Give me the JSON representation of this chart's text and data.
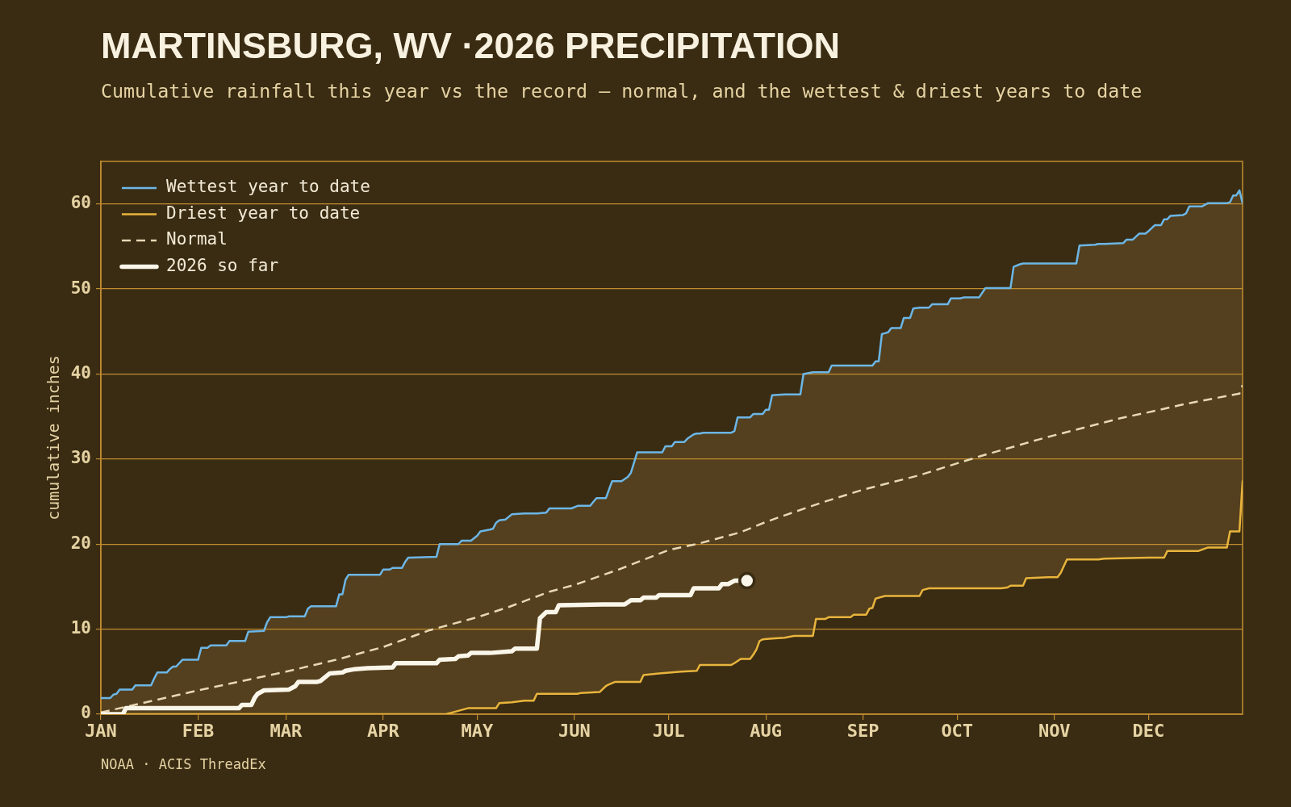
{
  "chart_data": {
    "type": "line",
    "title": "MARTINSBURG, WV ·2026 PRECIPITATION",
    "subtitle": "Cumulative rainfall this year vs the record — normal, and the wettest & driest years to date",
    "ylabel": "cumulative inches",
    "annotations": [
      "NOAA · ACIS ThreadEx"
    ],
    "xlim": [
      "--01-01",
      "--12-31"
    ],
    "xticks": [
      {
        "value": "--01-01",
        "label": "JAN"
      },
      {
        "value": "--02-01",
        "label": "FEB"
      },
      {
        "value": "--03-01",
        "label": "MAR"
      },
      {
        "value": "--04-01",
        "label": "APR"
      },
      {
        "value": "--05-01",
        "label": "MAY"
      },
      {
        "value": "--06-01",
        "label": "JUN"
      },
      {
        "value": "--07-01",
        "label": "JUL"
      },
      {
        "value": "--08-01",
        "label": "AUG"
      },
      {
        "value": "--09-01",
        "label": "SEP"
      },
      {
        "value": "--10-01",
        "label": "OCT"
      },
      {
        "value": "--11-01",
        "label": "NOV"
      },
      {
        "value": "--12-01",
        "label": "DEC"
      }
    ],
    "ylim": [
      0,
      65
    ],
    "yticks": [
      0,
      10,
      20,
      30,
      40,
      50,
      60
    ],
    "grid": "y",
    "legend": "top left",
    "series": [
      {
        "name": "Wettest year to date",
        "color": "#6cb6e6",
        "x": [
          "--01-01",
          "--01-04",
          "--01-05",
          "--01-06",
          "--01-07",
          "--01-11",
          "--01-12",
          "--01-17",
          "--01-18",
          "--01-19",
          "--01-22",
          "--01-23",
          "--01-24",
          "--01-25",
          "--01-27",
          "--02-01",
          "--02-02",
          "--02-04",
          "--02-05",
          "--02-10",
          "--02-11",
          "--02-16",
          "--02-17",
          "--02-22",
          "--02-23",
          "--02-24",
          "--03-01",
          "--03-02",
          "--03-07",
          "--03-08",
          "--03-09",
          "--03-17",
          "--03-18",
          "--03-19",
          "--03-20",
          "--03-21",
          "--03-31",
          "--04-01",
          "--04-03",
          "--04-04",
          "--04-07",
          "--04-08",
          "--04-09",
          "--04-18",
          "--04-19",
          "--04-21",
          "--04-24",
          "--04-25",
          "--04-26",
          "--04-28",
          "--04-29",
          "--05-01",
          "--05-02",
          "--05-05",
          "--05-06",
          "--05-07",
          "--05-08",
          "--05-10",
          "--05-12",
          "--05-16",
          "--05-19",
          "--05-20",
          "--05-23",
          "--05-24",
          "--05-31",
          "--06-02",
          "--06-03",
          "--06-06",
          "--06-08",
          "--06-09",
          "--06-11",
          "--06-12",
          "--06-13",
          "--06-14",
          "--06-16",
          "--06-18",
          "--06-19",
          "--06-20",
          "--06-21",
          "--06-22",
          "--06-23",
          "--06-28",
          "--06-29",
          "--06-30",
          "--07-02",
          "--07-03",
          "--07-05",
          "--07-06",
          "--07-07",
          "--07-09",
          "--07-10",
          "--07-11",
          "--07-12",
          "--07-21",
          "--07-22",
          "--07-23",
          "--07-24",
          "--07-27",
          "--07-28",
          "--07-29",
          "--07-30",
          "--07-31",
          "--08-01",
          "--08-02",
          "--08-03",
          "--08-07",
          "--08-09",
          "--08-10",
          "--08-12",
          "--08-13",
          "--08-16",
          "--08-17",
          "--08-20",
          "--08-21",
          "--08-22",
          "--08-28",
          "--08-29",
          "--09-02",
          "--09-03",
          "--09-04",
          "--09-05",
          "--09-06",
          "--09-07",
          "--09-08",
          "--09-09",
          "--09-10",
          "--09-13",
          "--09-14",
          "--09-16",
          "--09-17",
          "--09-19",
          "--09-20",
          "--09-22",
          "--09-23",
          "--09-28",
          "--09-29",
          "--10-02",
          "--10-03",
          "--10-08",
          "--10-10",
          "--10-15",
          "--10-17",
          "--10-18",
          "--10-19",
          "--10-21",
          "--10-22",
          "--10-23",
          "--10-30",
          "--11-02",
          "--11-03",
          "--11-05",
          "--11-08",
          "--11-09",
          "--11-14",
          "--11-15",
          "--11-17",
          "--11-23",
          "--11-24",
          "--11-26",
          "--11-28",
          "--11-30",
          "--12-01",
          "--12-03",
          "--12-05",
          "--12-06",
          "--12-07",
          "--12-08",
          "--12-12",
          "--12-13",
          "--12-14",
          "--12-17",
          "--12-18",
          "--12-20",
          "--12-25",
          "--12-26",
          "--12-27",
          "--12-28",
          "--12-29",
          "--12-30",
          "--12-31"
        ],
        "values": [
          1.9,
          1.9,
          2.3,
          2.4,
          2.9,
          2.9,
          3.4,
          3.4,
          4.2,
          4.9,
          4.9,
          5.3,
          5.6,
          5.6,
          6.4,
          6.4,
          7.8,
          7.8,
          8.1,
          8.1,
          8.6,
          8.6,
          9.7,
          9.8,
          10.8,
          11.4,
          11.4,
          11.5,
          11.5,
          12.4,
          12.7,
          12.7,
          14.1,
          14.1,
          15.8,
          16.4,
          16.4,
          17.0,
          17.0,
          17.2,
          17.2,
          17.9,
          18.4,
          18.5,
          20.0,
          20.0,
          20.0,
          20.0,
          20.4,
          20.4,
          20.4,
          21.0,
          21.5,
          21.7,
          21.8,
          22.5,
          22.8,
          22.9,
          23.5,
          23.6,
          23.6,
          23.6,
          23.7,
          24.2,
          24.2,
          24.5,
          24.5,
          24.5,
          25.4,
          25.4,
          25.4,
          26.4,
          27.4,
          27.4,
          27.4,
          27.9,
          28.4,
          29.6,
          30.8,
          30.8,
          30.8,
          30.8,
          30.8,
          31.5,
          31.5,
          32.0,
          32.0,
          32.0,
          32.4,
          32.9,
          33.0,
          33.0,
          33.1,
          33.1,
          33.3,
          34.9,
          34.9,
          34.9,
          35.3,
          35.3,
          35.3,
          35.3,
          35.8,
          35.8,
          37.5,
          37.6,
          37.6,
          37.6,
          37.6,
          40.0,
          40.2,
          40.2,
          40.2,
          40.2,
          41.0,
          41.0,
          41.0,
          41.0,
          41.0,
          41.0,
          41.5,
          41.5,
          44.7,
          44.8,
          44.9,
          45.4,
          45.4,
          46.6,
          46.6,
          47.7,
          47.8,
          47.8,
          47.8,
          48.2,
          48.2,
          48.9,
          48.9,
          49.0,
          49.0,
          50.1,
          50.1,
          50.1,
          50.1,
          52.6,
          52.9,
          53.0,
          53.0,
          53.0,
          53.0,
          53.0,
          53.0,
          53.0,
          55.1,
          55.2,
          55.3,
          55.3,
          55.4,
          55.8,
          55.8,
          56.5,
          56.5,
          56.8,
          57.5,
          57.5,
          58.2,
          58.2,
          58.6,
          58.7,
          58.9,
          59.7,
          59.7,
          59.7,
          60.1,
          60.1,
          60.1,
          60.2,
          61.0,
          61.0,
          61.6,
          60.1
        ],
        "upper": [
          1.9,
          1.9,
          2.3,
          2.4,
          2.9,
          2.9,
          3.4,
          3.4,
          4.2,
          4.9,
          4.9,
          5.3,
          5.6,
          5.6,
          6.4,
          6.4,
          7.8,
          7.8,
          8.1,
          8.1,
          8.6,
          8.6,
          9.7,
          9.8,
          10.8,
          11.4,
          11.4,
          11.5,
          11.5,
          12.4,
          12.7,
          12.7,
          14.1,
          14.1,
          15.8,
          16.4,
          16.4,
          17.0,
          17.0,
          17.2,
          17.2,
          17.9,
          18.4,
          18.5,
          20.0,
          20.0,
          20.0,
          20.0,
          20.4,
          20.4,
          20.4,
          21.0,
          21.5,
          21.7,
          21.8,
          22.5,
          22.8,
          22.9,
          23.5,
          23.6,
          23.6,
          23.6,
          23.7,
          24.2,
          24.2,
          24.5,
          24.5,
          24.5,
          25.4,
          25.4,
          25.4,
          26.4,
          27.4,
          27.4,
          27.4,
          27.9,
          28.4,
          29.6,
          30.8,
          30.8,
          30.8,
          30.8,
          30.8,
          31.5,
          31.5,
          32.0,
          32.0,
          32.0,
          32.4,
          32.9,
          33.0,
          33.0,
          33.1,
          33.1,
          33.3,
          34.9,
          34.9,
          34.9,
          35.3,
          35.3,
          35.3,
          35.3,
          35.8,
          35.8,
          37.5,
          37.6,
          37.6,
          37.6,
          37.6,
          40.0,
          40.2,
          40.2,
          40.2,
          40.2,
          41.0,
          41.0,
          41.0,
          41.0,
          41.0,
          41.0,
          41.5,
          41.5,
          44.7,
          44.8,
          44.9,
          45.4,
          45.4,
          46.6,
          46.6,
          47.7,
          47.8,
          47.8,
          47.8,
          48.2,
          48.2,
          48.9,
          48.9,
          49.0,
          49.0,
          50.1,
          50.1,
          50.1,
          50.1,
          52.6,
          52.9,
          53.0,
          53.0,
          53.0,
          53.0,
          53.0,
          53.0,
          53.0,
          55.1,
          55.2,
          55.3,
          55.3,
          55.4,
          55.8,
          55.8,
          56.5,
          56.5,
          56.8,
          57.5,
          57.5,
          58.2,
          58.2,
          58.6,
          58.7,
          58.9,
          59.7,
          59.7,
          59.7,
          60.1,
          60.1,
          60.1,
          60.2,
          61.0,
          61.0,
          61.6,
          60.1
        ],
        "lower": [
          0,
          0,
          0,
          0,
          0,
          0,
          0,
          0,
          0,
          0,
          0,
          0,
          0,
          0,
          0,
          0,
          0,
          0,
          0,
          0,
          0,
          0,
          0,
          0,
          0,
          0,
          0,
          0,
          0,
          0,
          0,
          0,
          0,
          0,
          0,
          0,
          0,
          0,
          0,
          0,
          0,
          0,
          0,
          0,
          0,
          0,
          0.3,
          0.4,
          0.5,
          0.7,
          0.7,
          0.7,
          0.7,
          0.7,
          0.7,
          0.7,
          1.3,
          1.4,
          1.4,
          1.6,
          1.6,
          2.4,
          2.4,
          2.4,
          2.4,
          2.4,
          2.5,
          2.5,
          2.6,
          2.6,
          3.3,
          3.5,
          3.6,
          3.8,
          3.8,
          3.8,
          3.8,
          3.8,
          3.8,
          3.8,
          4.6,
          4.8,
          4.8,
          4.9,
          4.9,
          4.9,
          5.0,
          5.0,
          5.0,
          5.1,
          5.1,
          5.8,
          5.8,
          5.8,
          6.0,
          6.2,
          6.5,
          6.5,
          7.0,
          7.6,
          8.6,
          8.8,
          8.8,
          8.9,
          8.9,
          9.0,
          9.1,
          9.2,
          9.2,
          9.2,
          9.2,
          11.2,
          11.2,
          11.4,
          11.4,
          11.4,
          11.7,
          11.7,
          12.4,
          12.5,
          13.6,
          13.7,
          13.8,
          13.9,
          13.9,
          13.9,
          13.9,
          13.9,
          13.9,
          13.9,
          13.9,
          14.6,
          14.8,
          14.8,
          14.8,
          14.8,
          14.8,
          14.8,
          14.8,
          14.8,
          14.8,
          14.9,
          15.1,
          15.1,
          15.1,
          15.1,
          16.0,
          16.1,
          16.1,
          16.6,
          18.2,
          18.2,
          18.2,
          18.2,
          18.2,
          18.3,
          18.3,
          18.3,
          18.4,
          18.4,
          18.4,
          18.4,
          18.4,
          18.4,
          18.4,
          19.2,
          19.2,
          19.2,
          19.2,
          19.2,
          19.2,
          19.3,
          19.6,
          19.6,
          19.6,
          21.5,
          21.5,
          21.5,
          21.5,
          27.4
        ]
      },
      {
        "name": "Driest year to date",
        "color": "#e8b43c",
        "x": [
          "--01-01",
          "--04-21",
          "--04-24",
          "--04-28",
          "--05-07",
          "--05-08",
          "--05-12",
          "--05-16",
          "--05-19",
          "--05-20",
          "--06-02",
          "--06-03",
          "--06-09",
          "--06-11",
          "--06-12",
          "--06-14",
          "--06-22",
          "--06-23",
          "--06-28",
          "--07-05",
          "--07-10",
          "--07-11",
          "--07-21",
          "--07-22",
          "--07-24",
          "--07-27",
          "--07-28",
          "--07-29",
          "--07-30",
          "--07-31",
          "--08-03",
          "--08-07",
          "--08-10",
          "--08-16",
          "--08-17",
          "--08-20",
          "--08-21",
          "--08-28",
          "--08-29",
          "--09-02",
          "--09-03",
          "--09-04",
          "--09-05",
          "--09-08",
          "--09-19",
          "--09-20",
          "--09-22",
          "--10-15",
          "--10-17",
          "--10-18",
          "--10-22",
          "--10-23",
          "--10-30",
          "--11-02",
          "--11-03",
          "--11-05",
          "--11-15",
          "--11-17",
          "--12-01",
          "--12-06",
          "--12-07",
          "--12-17",
          "--12-20",
          "--12-26",
          "--12-27",
          "--12-30",
          "--12-31"
        ],
        "values": [
          0,
          0,
          0.3,
          0.7,
          0.7,
          1.3,
          1.4,
          1.6,
          1.6,
          2.4,
          2.4,
          2.5,
          2.6,
          3.3,
          3.5,
          3.8,
          3.8,
          4.6,
          4.8,
          5.0,
          5.1,
          5.8,
          5.8,
          6.0,
          6.5,
          6.5,
          7.0,
          7.6,
          8.6,
          8.8,
          8.9,
          9.0,
          9.2,
          9.2,
          11.2,
          11.2,
          11.4,
          11.4,
          11.7,
          11.7,
          12.4,
          12.5,
          13.6,
          13.9,
          13.9,
          14.6,
          14.8,
          14.8,
          14.9,
          15.1,
          15.1,
          16.0,
          16.1,
          16.1,
          16.6,
          18.2,
          18.2,
          18.3,
          18.4,
          18.4,
          19.2,
          19.2,
          19.6,
          19.6,
          21.5,
          21.5,
          27.4
        ]
      },
      {
        "name": "Normal",
        "color": "#e8d8b4",
        "line_style": "dashed",
        "x": [
          "--01-01",
          "--02-01",
          "--03-01",
          "--03-17",
          "--04-01",
          "--04-16",
          "--05-01",
          "--05-11",
          "--05-24",
          "--06-01",
          "--06-15",
          "--07-01",
          "--07-11",
          "--07-24",
          "--08-01",
          "--08-04",
          "--08-19",
          "--09-01",
          "--09-19",
          "--10-01",
          "--10-08",
          "--10-27",
          "--11-01",
          "--11-22",
          "--12-01",
          "--12-13",
          "--12-30",
          "--12-31"
        ],
        "values": [
          0.2,
          2.8,
          5.0,
          6.4,
          7.9,
          9.9,
          11.4,
          12.6,
          14.4,
          15.2,
          17.0,
          19.3,
          20.1,
          21.4,
          22.6,
          23.0,
          24.9,
          26.4,
          28.1,
          29.5,
          30.3,
          32.3,
          32.8,
          34.8,
          35.5,
          36.5,
          37.7,
          38.7
        ]
      },
      {
        "name": "2026 so far",
        "color": "#fbf6ea",
        "x": [
          "--01-01",
          "--01-08",
          "--01-09",
          "--02-14",
          "--02-15",
          "--02-18",
          "--02-19",
          "--02-20",
          "--02-22",
          "--03-02",
          "--03-04",
          "--03-05",
          "--03-11",
          "--03-12",
          "--03-15",
          "--03-19",
          "--03-20",
          "--03-23",
          "--03-27",
          "--04-04",
          "--04-05",
          "--04-18",
          "--04-19",
          "--04-24",
          "--04-25",
          "--04-28",
          "--04-29",
          "--05-05",
          "--05-12",
          "--05-13",
          "--05-20",
          "--05-21",
          "--05-23",
          "--05-26",
          "--05-27",
          "--06-10",
          "--06-17",
          "--06-19",
          "--06-22",
          "--06-23",
          "--06-27",
          "--06-28",
          "--07-08",
          "--07-09",
          "--07-17",
          "--07-18",
          "--07-20",
          "--07-22",
          "--07-26"
        ],
        "values": [
          0,
          0,
          0.7,
          0.7,
          1.1,
          1.1,
          1.9,
          2.4,
          2.8,
          2.9,
          3.3,
          3.8,
          3.8,
          3.9,
          4.8,
          4.9,
          5.1,
          5.3,
          5.4,
          5.5,
          6.0,
          6.0,
          6.4,
          6.5,
          6.8,
          6.9,
          7.2,
          7.2,
          7.4,
          7.7,
          7.7,
          11.3,
          12.0,
          12.0,
          12.8,
          12.9,
          12.9,
          13.4,
          13.4,
          13.7,
          13.7,
          14.0,
          14.0,
          14.8,
          14.8,
          15.3,
          15.3,
          15.7,
          15.7
        ]
      },
      {
        "type": "scatter",
        "color": "#fbf6ea",
        "marker": "circle",
        "x": [
          "--07-26"
        ],
        "values": [
          15.7
        ]
      }
    ]
  }
}
